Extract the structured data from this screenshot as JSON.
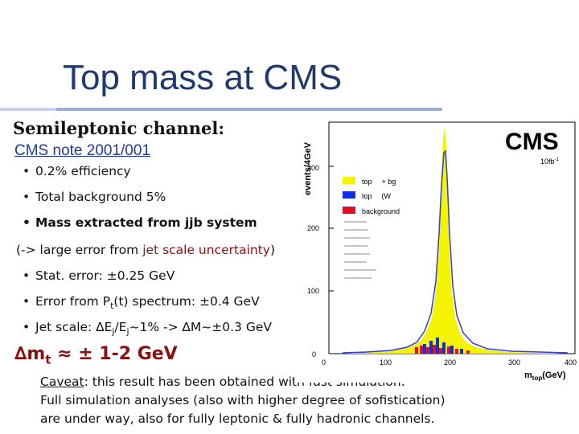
{
  "slide": {
    "title": "Top mass at CMS",
    "subtitle": "Semileptonic channel:",
    "note_link": "CMS note 2001/001",
    "bullets": [
      "0.2% efficiency",
      "Total background 5%",
      "Mass extracted from jjb system"
    ],
    "paren_prefix": "(-> large error from ",
    "paren_highlight": "jet scale uncertainty",
    "paren_suffix": ")",
    "bullets2": [
      "Stat. error: ±0.25 GeV",
      "Error from P",
      "Jet scale: ∆E"
    ],
    "pt_sub": "t",
    "pt_rest": "(t) spectrum: ±0.4 GeV",
    "jet_sub1": "j",
    "jet_mid": "/E",
    "jet_sub2": "j",
    "jet_rest": "~1% -> ∆M~±0.3 GeV",
    "result_prefix": "∆m",
    "result_sub": "t",
    "result_rest": " ≈ ± 1-2 GeV",
    "caveat_word": "Caveat",
    "caveat_line1": ": this result has been obtained with fast simulation.",
    "caveat_line2": "Full simulation analyses (also with higher degree of sofistication)",
    "caveat_line3": "are under way, also for fully leptonic & fully hadronic channels."
  },
  "histogram": {
    "logo": "CMS",
    "lumi": "10fb",
    "lumi_sup": "-1",
    "ylabel": "events/4GeV",
    "xlabel": "m",
    "xlabel_sub": "top",
    "xlabel_unit": "(GeV)",
    "yticks": [
      "0",
      "100",
      "200",
      "300"
    ],
    "xticks": [
      "0",
      "100",
      "200",
      "300",
      "400"
    ],
    "legend": [
      "top",
      "top",
      "background"
    ],
    "legend_suffix": [
      "+ bg",
      "(W",
      ""
    ],
    "legend_colors": [
      "#f4f400",
      "#1030e0",
      "#e01020"
    ]
  }
}
